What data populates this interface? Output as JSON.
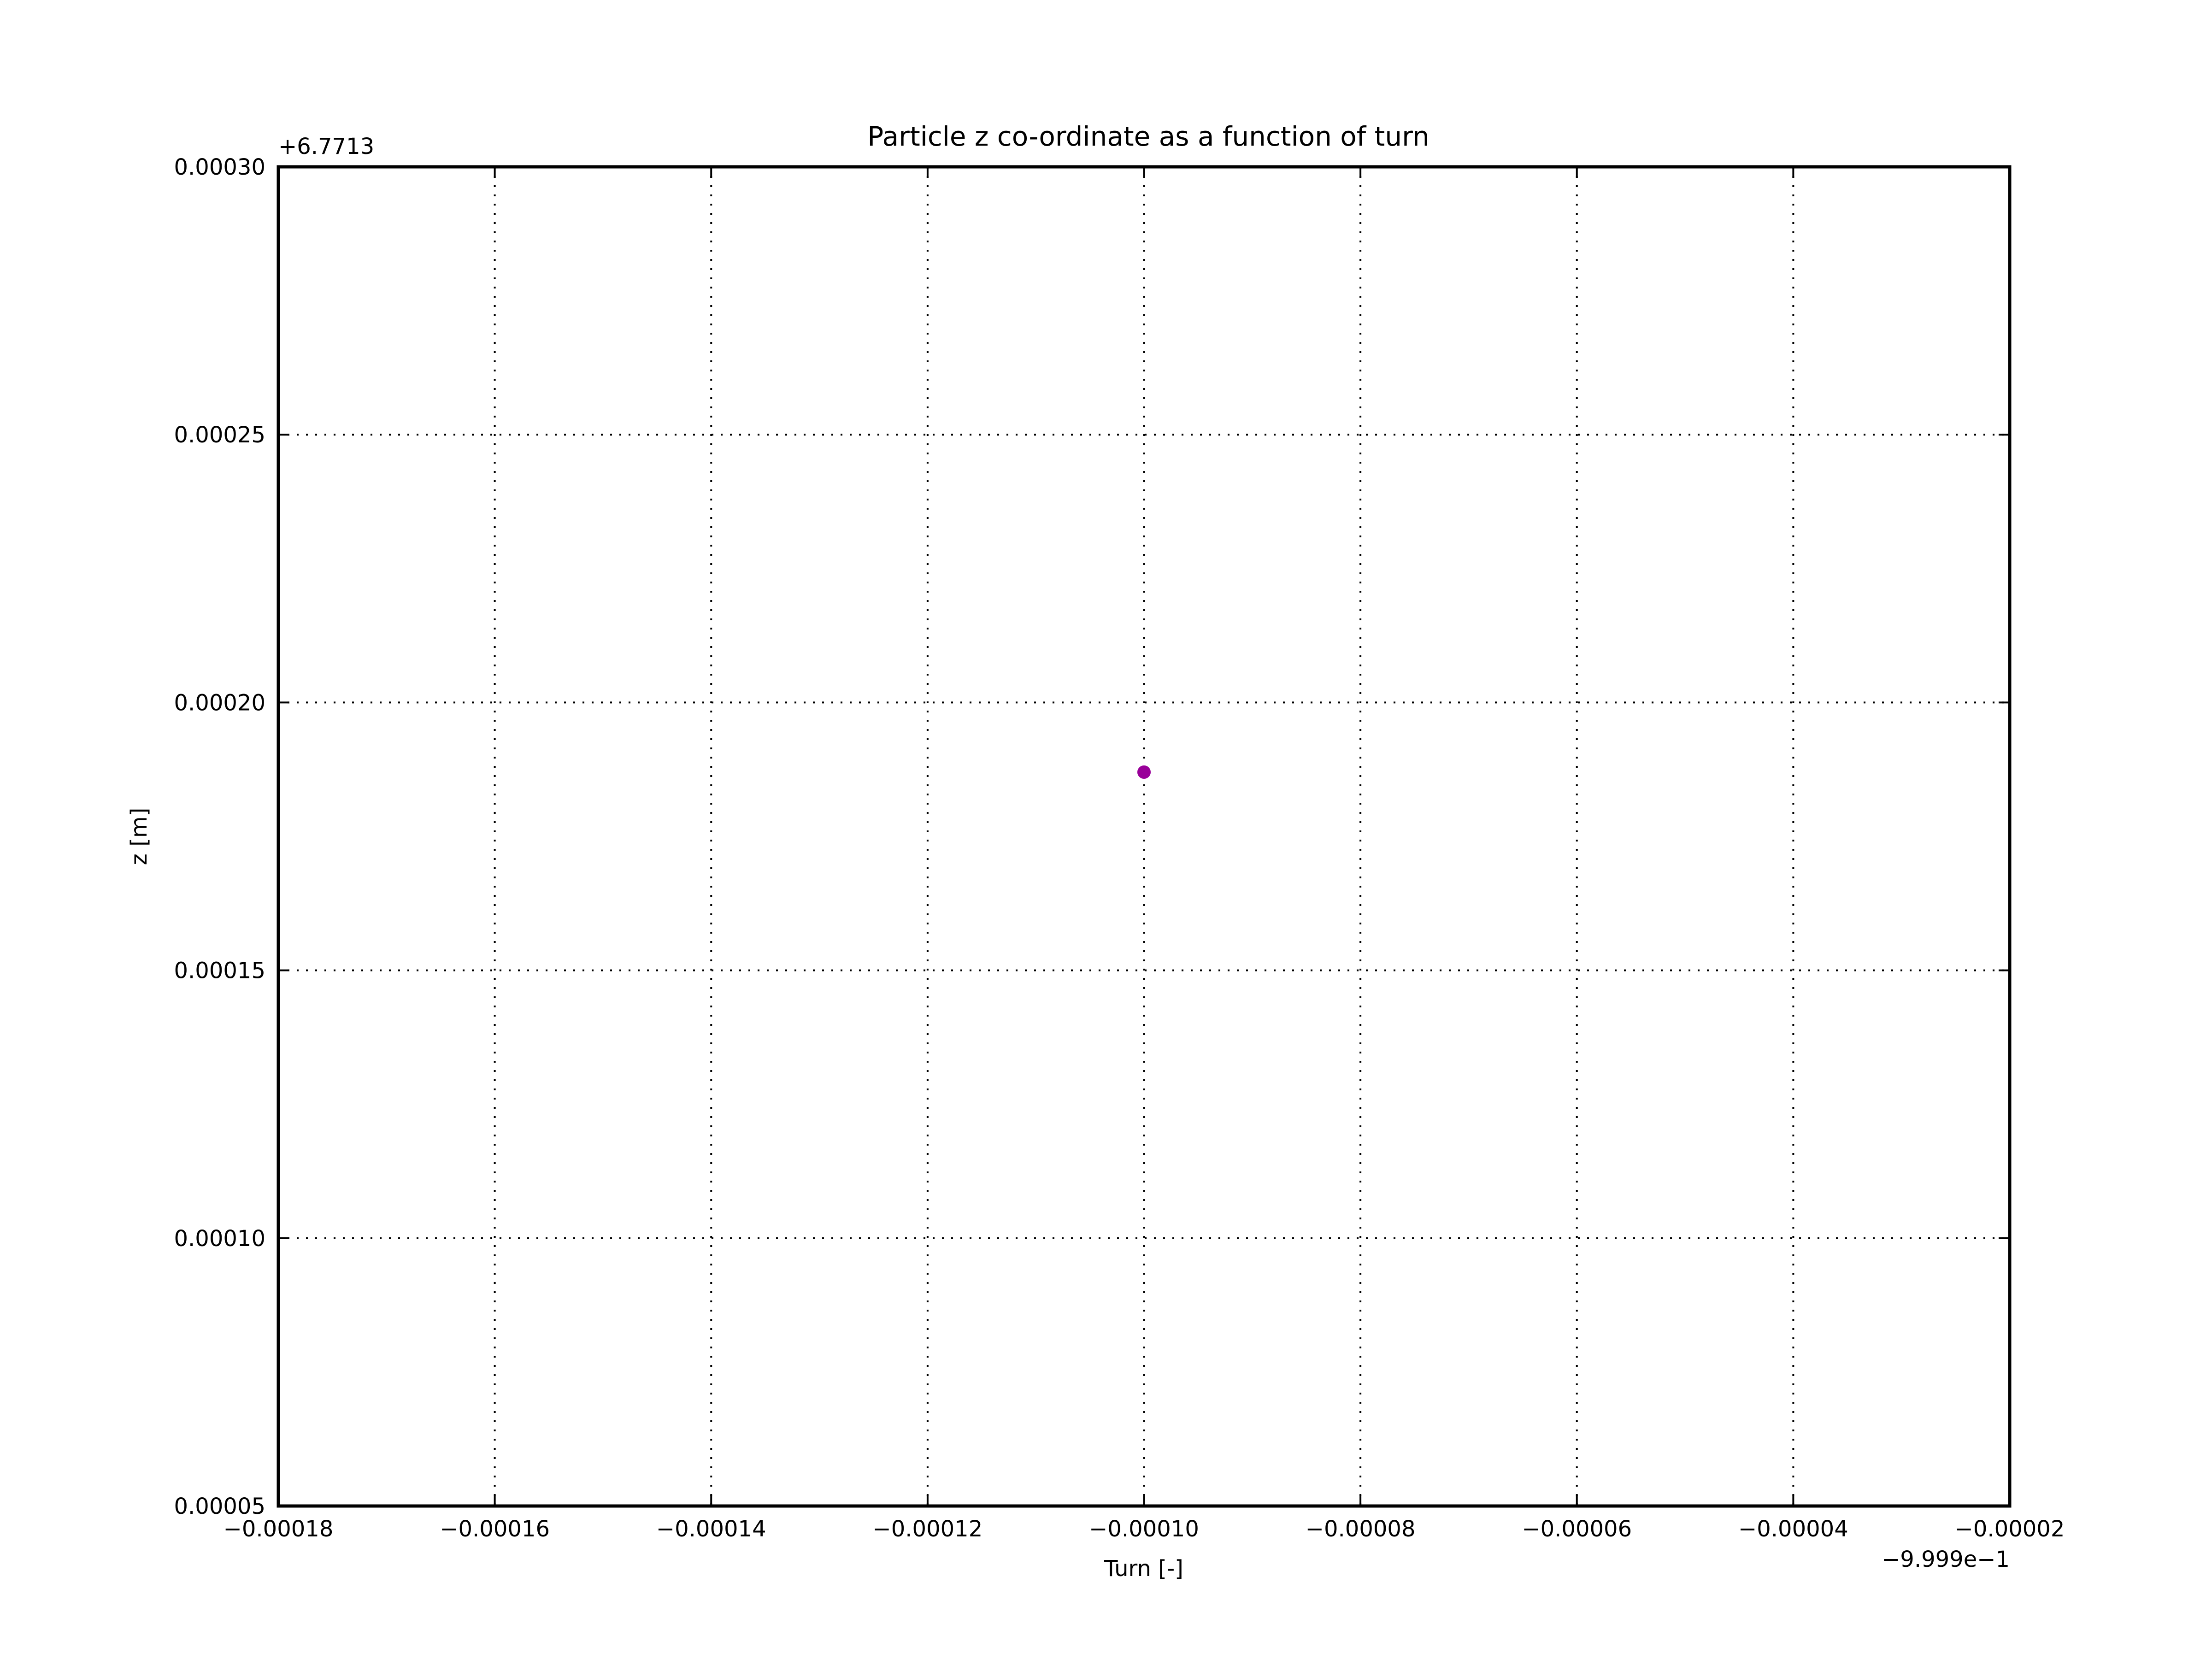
{
  "chart_data": {
    "type": "scatter",
    "title": "Particle z co-ordinate as a function of turn",
    "xlabel": "Turn [-]",
    "ylabel": "z [m]",
    "x_offset_label": "−9.999e−1",
    "y_offset_label": "+6.7713",
    "xlim": [
      -0.00018,
      -2e-05
    ],
    "ylim": [
      5e-05,
      0.0003
    ],
    "x_ticks": [
      -0.00018,
      -0.00016,
      -0.00014,
      -0.00012,
      -0.0001,
      -8e-05,
      -6e-05,
      -4e-05,
      -2e-05
    ],
    "x_tick_labels": [
      "−0.00018",
      "−0.00016",
      "−0.00014",
      "−0.00012",
      "−0.00010",
      "−0.00008",
      "−0.00006",
      "−0.00004",
      "−0.00002"
    ],
    "y_ticks": [
      5e-05,
      0.0001,
      0.00015,
      0.0002,
      0.00025,
      0.0003
    ],
    "y_tick_labels": [
      "0.00005",
      "0.00010",
      "0.00015",
      "0.00020",
      "0.00025",
      "0.00030"
    ],
    "grid": true,
    "points": [
      {
        "x": -0.0001,
        "y": 0.000187
      }
    ],
    "marker_color": "#990099"
  }
}
